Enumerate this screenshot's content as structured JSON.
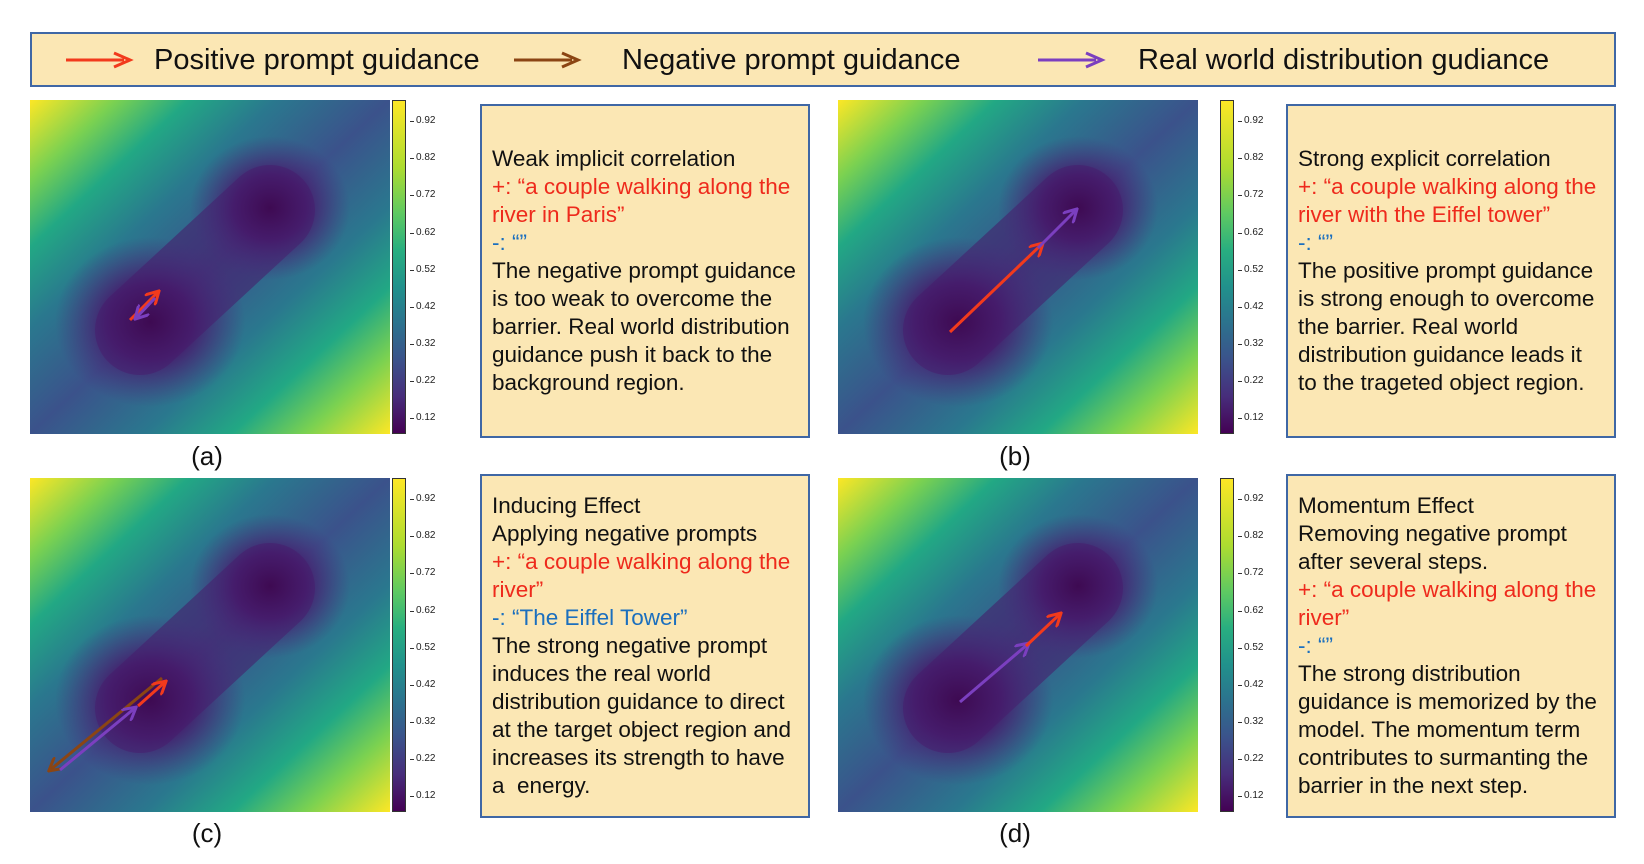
{
  "legend": {
    "positive": "Positive prompt guidance",
    "negative": "Negative prompt guidance",
    "real": "Real world distribution gudiance"
  },
  "colors": {
    "positive_arrow": "#f23a1c",
    "negative_arrow": "#8b4513",
    "real_arrow": "#7b3fbf",
    "box_fill": "#fbe7b4",
    "box_border": "#3f67a5",
    "positive_text": "#ee2a1c",
    "negative_text": "#1b6fbe"
  },
  "colorbar_ticks": [
    "0.92",
    "0.82",
    "0.72",
    "0.62",
    "0.52",
    "0.42",
    "0.32",
    "0.22",
    "0.12"
  ],
  "panels": [
    {
      "caption": "(a)",
      "title": [
        "Weak implicit correlation"
      ],
      "positive": "+: “a couple walking along the river in Paris”",
      "negative": "-: “”",
      "body": "The negative prompt guidance is too weak to overcome the barrier. Real world distribution guidance push it back to the background region."
    },
    {
      "caption": "(b)",
      "title": [
        "Strong explicit correlation"
      ],
      "positive": "+: “a couple walking along the river with the Eiffel tower”",
      "negative": "-: “”",
      "body": "The positive prompt guidance is strong enough to overcome the barrier. Real world distribution guidance leads it to the trageted object region."
    },
    {
      "caption": "(c)",
      "title": [
        "Inducing Effect",
        "Applying negative prompts"
      ],
      "positive": "+: “a couple walking along the river”",
      "negative": "-: “The Eiffel Tower”",
      "body": "The strong negative prompt induces the real world distribution guidance to direct at the target object region and increases its strength to have a  energy."
    },
    {
      "caption": "(d)",
      "title": [
        "Momentum Effect",
        "Removing negative prompt after several steps."
      ],
      "positive": "+: “a couple walking along the river”",
      "negative": "-: “”",
      "body": "The strong distribution guidance is memorized by the model. The momentum term  contributes to surmanting the barrier in the next step."
    }
  ]
}
